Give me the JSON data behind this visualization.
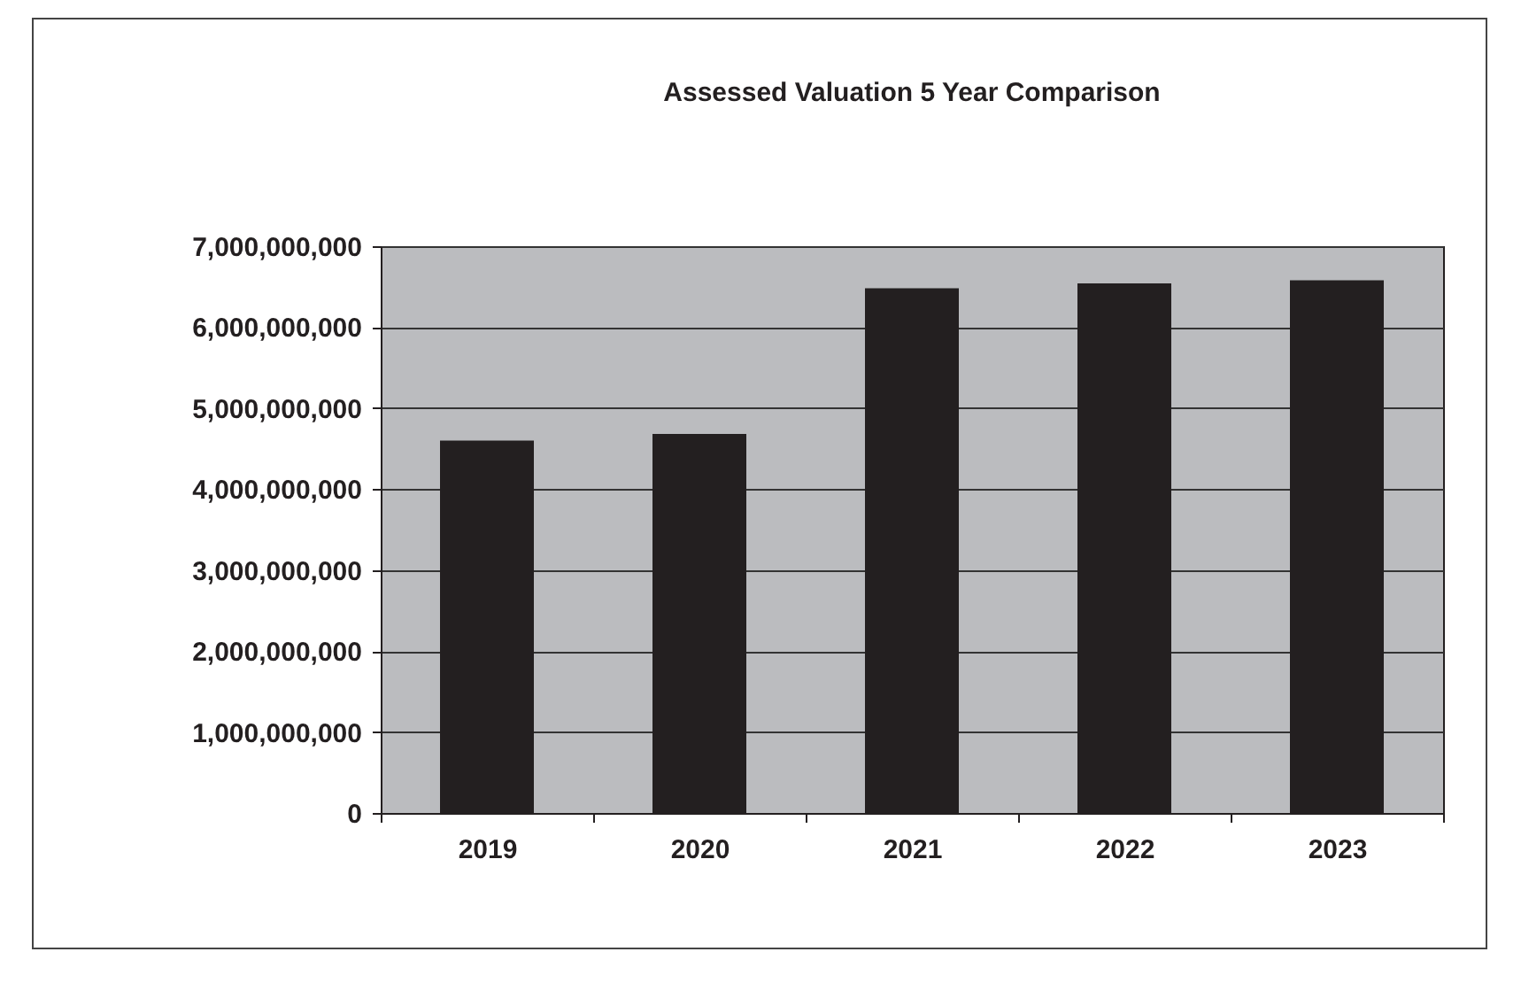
{
  "chart_data": {
    "type": "bar",
    "title": "Assessed Valuation 5 Year Comparison",
    "categories": [
      "2019",
      "2020",
      "2021",
      "2022",
      "2023"
    ],
    "values": [
      4600000000,
      4680000000,
      6480000000,
      6540000000,
      6580000000
    ],
    "color": "#231f20",
    "ylim": [
      0,
      7000000000
    ],
    "yticks": [
      0,
      {
        "value": 1000000000,
        "label": "1,000,000,000"
      },
      {
        "value": 2000000000,
        "label": "2,000,000,000"
      },
      {
        "value": 3000000000,
        "label": "3,000,000,000"
      },
      {
        "value": 4000000000,
        "label": "4,000,000,000"
      },
      {
        "value": 5000000000,
        "label": "5,000,000,000"
      },
      {
        "value": 6000000000,
        "label": "6,000,000,000"
      },
      {
        "value": 7000000000,
        "label": "7,000,000,000"
      }
    ],
    "grid": "y"
  }
}
